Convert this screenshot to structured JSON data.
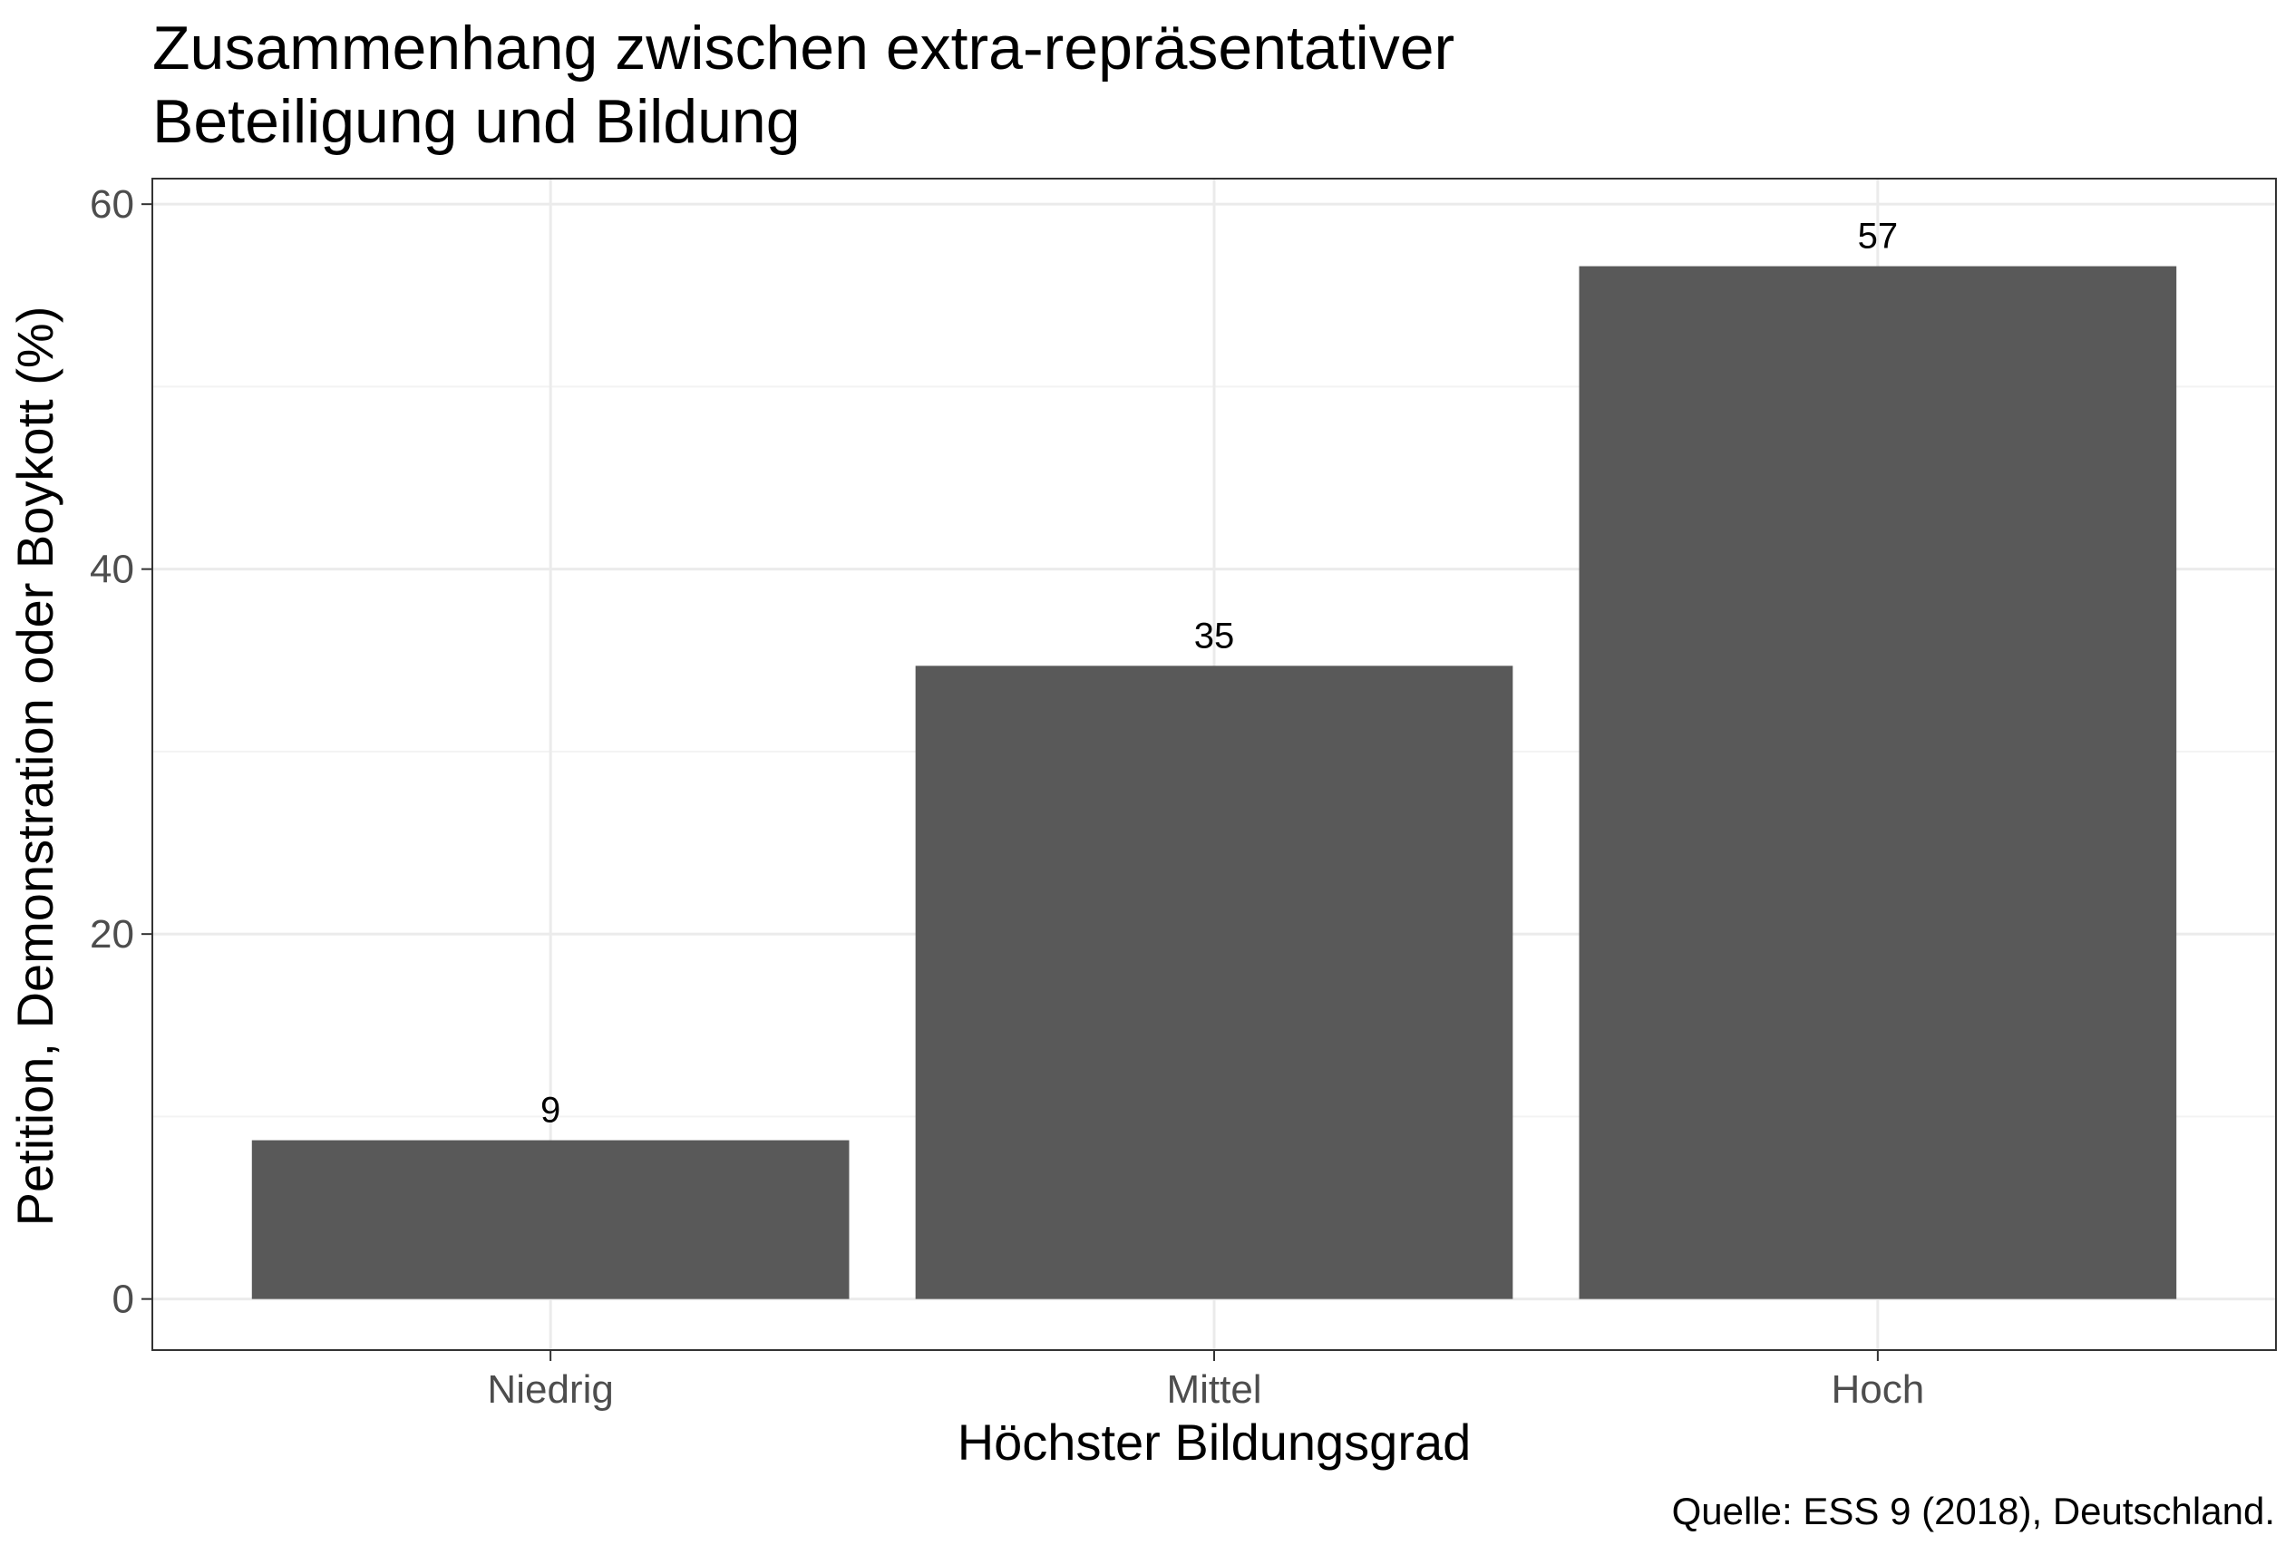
{
  "chart_data": {
    "type": "bar",
    "title": "Zusammenhang zwischen extra-repräsentativer Beteiligung und Bildung",
    "title_lines": [
      "Zusammenhang zwischen extra-repräsentativer",
      "Beteiligung und Bildung"
    ],
    "xlabel": "Höchster Bildungsgrad",
    "ylabel": "Petition, Demonstration oder Boykott (%)",
    "categories": [
      "Niedrig",
      "Mittel",
      "Hoch"
    ],
    "values": [
      8.7,
      34.7,
      56.6
    ],
    "data_labels": [
      "9",
      "35",
      "57"
    ],
    "ylim": [
      -2.8,
      61.4
    ],
    "yticks": [
      0,
      20,
      40,
      60
    ],
    "grid": true,
    "legend": "none",
    "caption": "Quelle: ESS 9 (2018), Deutschland.",
    "colors": {
      "bar": "#595959",
      "grid_major": "#ebebeb",
      "grid_minor": "#f3f3f3",
      "panel_border": "#333333",
      "tick_text": "#4d4d4d"
    }
  }
}
